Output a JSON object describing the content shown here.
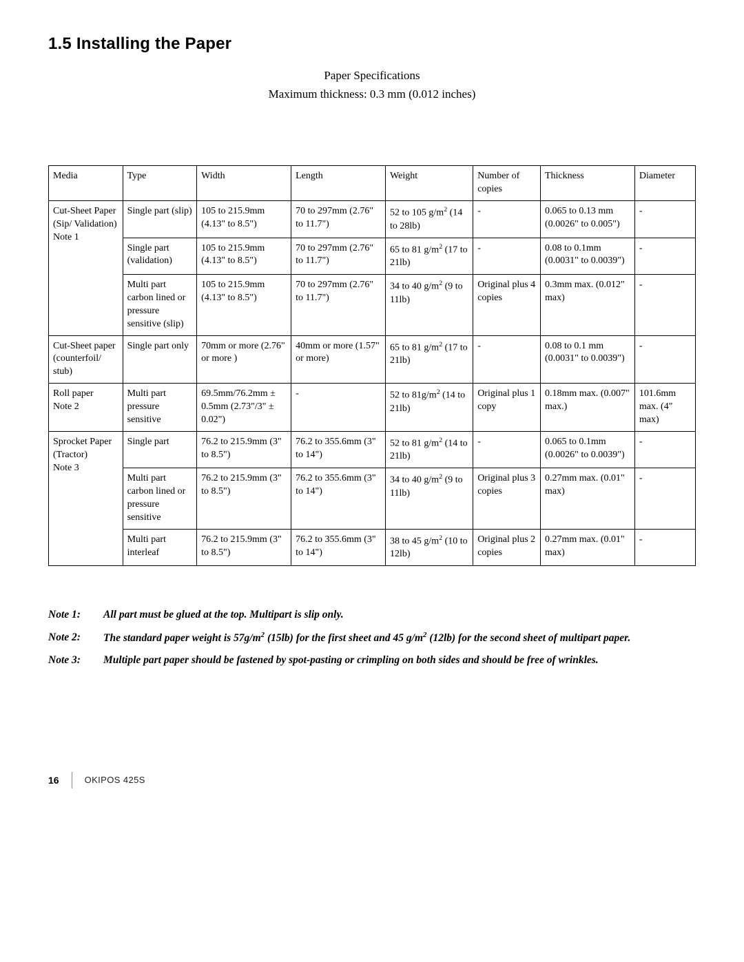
{
  "heading": "1.5  Installing the Paper",
  "subtitle1": "Paper Specifications",
  "subtitle2": "Maximum thickness: 0.3 mm (0.012 inches)",
  "columns": [
    "Media",
    "Type",
    "Width",
    "Length",
    "Weight",
    "Number of copies",
    "Thickness",
    "Diameter"
  ],
  "groups": [
    {
      "media": "Cut-Sheet Paper (Sip/ Validation)\n  Note 1",
      "rows": [
        {
          "type": "Single part (slip)",
          "width": "105 to 215.9mm (4.13\" to 8.5\")",
          "length": "70 to 297mm (2.76\" to 11.7\")",
          "weight_html": "52 to 105 g/m<sup>2</sup> (14 to 28lb)",
          "copies": "-",
          "thickness": "0.065 to 0.13 mm (0.0026\" to 0.005\")",
          "diameter": "-"
        },
        {
          "type": "Single part (validation)",
          "width": "105 to 215.9mm (4.13\" to 8.5\")",
          "length": "70 to 297mm (2.76\" to 11.7\")",
          "weight_html": "65 to 81 g/m<sup>2</sup> (17 to 21lb)",
          "copies": "-",
          "thickness": "0.08 to 0.1mm (0.0031\" to 0.0039\")",
          "diameter": "-"
        },
        {
          "type": "Multi part carbon lined or pressure sensitive (slip)",
          "width": "105 to 215.9mm (4.13\" to 8.5\")",
          "length": "70 to 297mm (2.76\" to 11.7\")",
          "weight_html": "34 to 40 g/m<sup>2</sup> (9 to 11lb)",
          "copies": "Original plus 4 copies",
          "thickness": "0.3mm max. (0.012\" max)",
          "diameter": "-"
        }
      ]
    },
    {
      "media": "Cut-Sheet paper (counterfoil/ stub)",
      "rows": [
        {
          "type": "Single part only",
          "width": "70mm or more (2.76\" or more )",
          "length": "40mm or more (1.57\" or more)",
          "weight_html": "65 to 81 g/m<sup>2</sup> (17 to 21lb)",
          "copies": "-",
          "thickness": "0.08 to 0.1 mm (0.0031\" to 0.0039\")",
          "diameter": "-"
        }
      ]
    },
    {
      "media": "Roll paper\n   Note 2",
      "rows": [
        {
          "type": "Multi part pressure sensitive",
          "width": "69.5mm/76.2mm ± 0.5mm (2.73\"/3\" ± 0.02\")",
          "length": "-",
          "weight_html": "52 to 81g/m<sup>2</sup> (14 to 21lb)",
          "copies": "Original plus 1 copy",
          "thickness": "0.18mm max. (0.007\" max.)",
          "diameter": "101.6mm max. (4\" max)"
        }
      ]
    },
    {
      "media": "Sprocket Paper (Tractor)\n   Note 3",
      "rows": [
        {
          "type": "Single part",
          "width": "76.2 to 215.9mm (3\" to 8.5\")",
          "length": "76.2 to 355.6mm (3\" to 14\")",
          "weight_html": "52 to 81 g/m<sup>2</sup> (14 to 21lb)",
          "copies": "-",
          "thickness": "0.065 to 0.1mm (0.0026\" to 0.0039\")",
          "diameter": "-"
        },
        {
          "type": "Multi part carbon lined or pressure sensitive",
          "width": "76.2 to 215.9mm (3\" to 8.5\")",
          "length": "76.2 to 355.6mm (3\" to 14\")",
          "weight_html": "34 to 40 g/m<sup>2</sup> (9 to 11lb)",
          "copies": "Original plus 3 copies",
          "thickness": "0.27mm max. (0.01\" max)",
          "diameter": "-"
        },
        {
          "type": "Multi part interleaf",
          "width": "76.2 to 215.9mm (3\" to 8.5\")",
          "length": "76.2 to 355.6mm (3\" to 14\")",
          "weight_html": "38 to 45 g/m<sup>2</sup> (10 to 12lb)",
          "copies": "Original plus 2 copies",
          "thickness": "0.27mm max. (0.01\" max)",
          "diameter": "-"
        }
      ]
    }
  ],
  "notes": [
    {
      "label": "Note 1:",
      "text_html": "All part must be glued at the top. Multipart is slip only."
    },
    {
      "label": "Note 2:",
      "text_html": "The standard paper weight is 57g/m<sup>2</sup> (15lb) for the first sheet and 45 g/m<sup>2</sup>  (12lb) for the second sheet of multipart paper."
    },
    {
      "label": "Note 3:",
      "text_html": "Multiple part paper should be fastened by spot-pasting or crimpling on both sides and should be free of wrinkles."
    }
  ],
  "footer": {
    "page": "16",
    "model": "OKIPOS 425S"
  }
}
